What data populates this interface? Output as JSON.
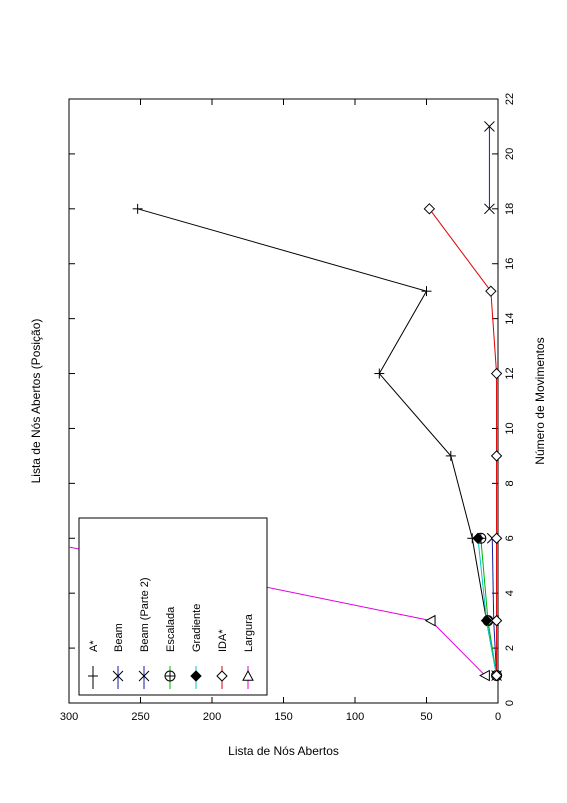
{
  "chart_data": {
    "type": "line",
    "title": "Lista de Nós Abertos (Posição)",
    "xlabel": "Número de Movimentos",
    "ylabel": "Lista de Nós Abertos",
    "xlim": [
      0,
      22
    ],
    "ylim": [
      0,
      300
    ],
    "xticks": [
      0,
      2,
      4,
      6,
      8,
      10,
      12,
      14,
      16,
      18,
      20,
      22
    ],
    "yticks": [
      0,
      50,
      100,
      150,
      200,
      250,
      300
    ],
    "grid": false,
    "legend_position": "bottom-left",
    "series": [
      {
        "name": "A*",
        "marker": "plus",
        "color": "#000000",
        "x": [
          1,
          3,
          6,
          9,
          12,
          15,
          18
        ],
        "y": [
          1,
          8,
          18,
          33,
          83,
          50,
          252
        ]
      },
      {
        "name": "Beam",
        "marker": "x",
        "color": "#1a1aa8",
        "x": [
          1,
          3,
          6
        ],
        "y": [
          1,
          3,
          4
        ]
      },
      {
        "name": "Beam (Parte 2)",
        "marker": "x",
        "color": "#1a1aa8",
        "x": [
          18,
          21
        ],
        "y": [
          6,
          6
        ]
      },
      {
        "name": "Escalada",
        "marker": "circle-plus",
        "color": "#00b000",
        "x": [
          1,
          3,
          6
        ],
        "y": [
          1,
          7,
          12
        ]
      },
      {
        "name": "Gradiente",
        "marker": "diamond-filled",
        "color": "#00c8c8",
        "x": [
          1,
          3,
          6
        ],
        "y": [
          1,
          8,
          14
        ]
      },
      {
        "name": "IDA*",
        "marker": "diamond",
        "color": "#e00000",
        "x": [
          1,
          3,
          6,
          9,
          12,
          15,
          18
        ],
        "y": [
          1,
          1,
          1,
          1,
          1,
          5,
          48
        ]
      },
      {
        "name": "Largura",
        "marker": "triangle",
        "color": "#e000e0",
        "x": [
          1,
          3,
          6
        ],
        "y": [
          9,
          47,
          330
        ]
      }
    ]
  }
}
